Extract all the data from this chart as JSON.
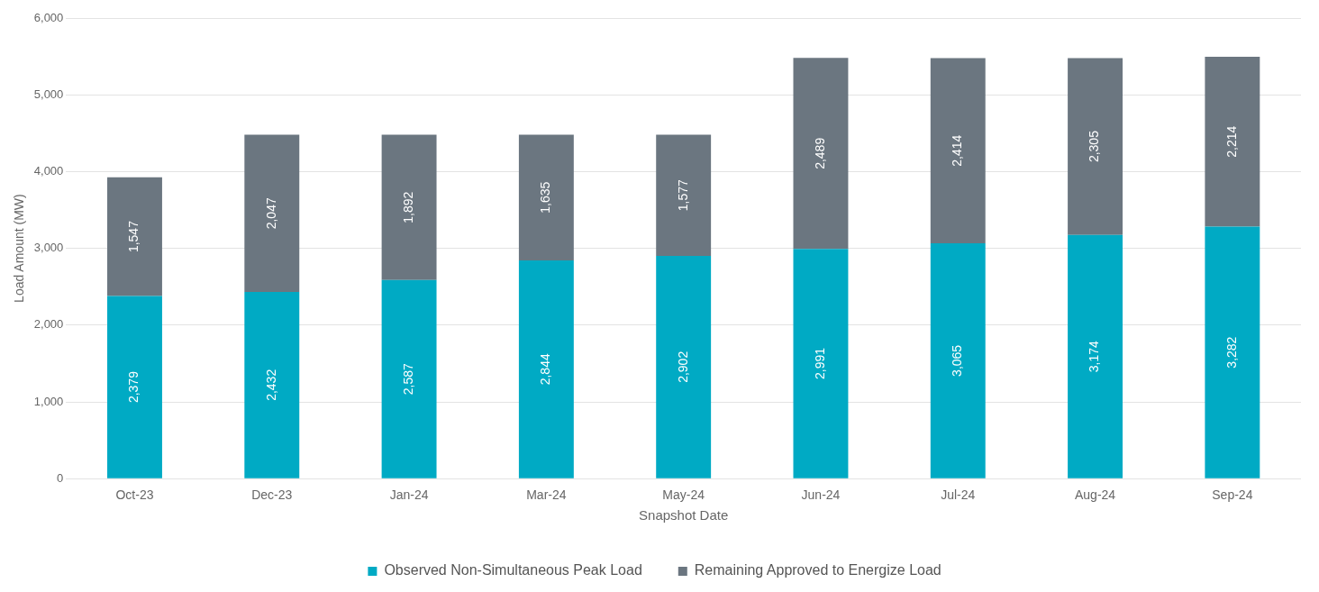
{
  "chart_data": {
    "type": "bar",
    "stacked": true,
    "xlabel": "Snapshot Date",
    "ylabel": "Load Amount (MW)",
    "categories": [
      "Oct-23",
      "Dec-23",
      "Jan-24",
      "Mar-24",
      "May-24",
      "Jun-24",
      "Jul-24",
      "Aug-24",
      "Sep-24"
    ],
    "series": [
      {
        "name": "Observed Non-Simultaneous Peak Load",
        "color": "#00aac4",
        "values": [
          2379,
          2432,
          2587,
          2844,
          2902,
          2991,
          3065,
          3174,
          3282
        ],
        "value_labels": [
          "2,379",
          "2,432",
          "2,587",
          "2,844",
          "2,902",
          "2,991",
          "3,065",
          "3,174",
          "3,282"
        ]
      },
      {
        "name": "Remaining Approved to Energize Load",
        "color": "#6b7680",
        "values": [
          1547,
          2047,
          1892,
          1635,
          1577,
          2489,
          2414,
          2305,
          2214
        ],
        "value_labels": [
          "1,547",
          "2,047",
          "1,892",
          "1,635",
          "1,577",
          "2,489",
          "2,414",
          "2,305",
          "2,214"
        ]
      }
    ],
    "ylim": [
      0,
      6000
    ],
    "yticks": [
      {
        "value": 0,
        "label": "0"
      },
      {
        "value": 1000,
        "label": "1,000"
      },
      {
        "value": 2000,
        "label": "2,000"
      },
      {
        "value": 3000,
        "label": "3,000"
      },
      {
        "value": 4000,
        "label": "4,000"
      },
      {
        "value": 5000,
        "label": "5,000"
      },
      {
        "value": 6000,
        "label": "6,000"
      }
    ],
    "grid": "y",
    "legend": "bottom"
  }
}
